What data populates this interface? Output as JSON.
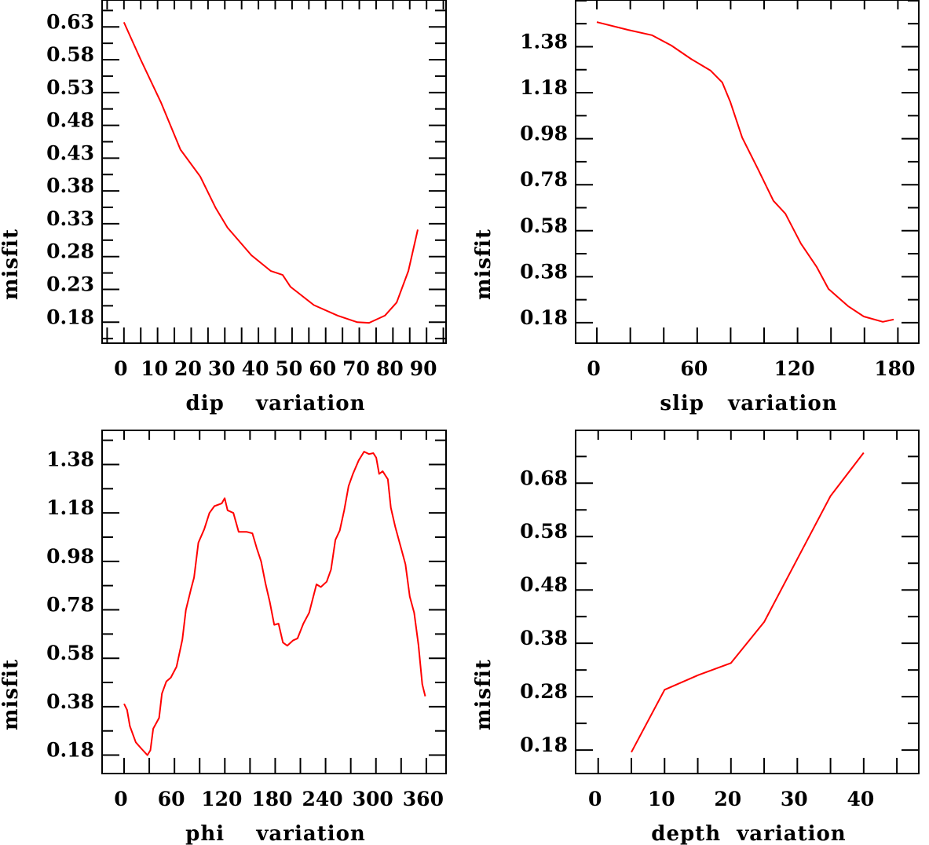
{
  "chart_data": [
    {
      "type": "line",
      "xlabel": "dip    variation",
      "ylabel": "misfit",
      "color": "#ff0000",
      "xlim": [
        -6.5,
        95.8
      ],
      "ylim": [
        0.148,
        0.671
      ],
      "xticks": [
        0,
        10,
        20,
        30,
        40,
        50,
        60,
        70,
        80,
        90
      ],
      "xtick_labels": [
        "0",
        "10",
        "20",
        "30",
        "40",
        "50",
        "60",
        "70",
        "80",
        "90"
      ],
      "xminor_step": 5,
      "yticks": [
        0.18,
        0.23,
        0.28,
        0.33,
        0.38,
        0.43,
        0.48,
        0.53,
        0.58,
        0.63
      ],
      "ytick_labels": [
        "0.18",
        "0.23",
        "0.28",
        "0.33",
        "0.38",
        "0.43",
        "0.48",
        "0.53",
        "0.58",
        "0.63"
      ],
      "yminor_step": 0.025,
      "x": [
        0,
        5,
        11,
        16.8,
        22.7,
        27.3,
        30.8,
        37.9,
        43.7,
        47.2,
        49.5,
        56.5,
        63.6,
        69.4,
        72.9,
        77.6,
        81.1,
        84.6,
        87.4
      ],
      "y": [
        0.637,
        0.58,
        0.515,
        0.443,
        0.402,
        0.354,
        0.324,
        0.282,
        0.258,
        0.252,
        0.234,
        0.206,
        0.19,
        0.18,
        0.179,
        0.19,
        0.21,
        0.258,
        0.321
      ]
    },
    {
      "type": "line",
      "xlabel": "slip   variation",
      "ylabel": "misfit",
      "color": "#ff0000",
      "xlim": [
        -12.7,
        192.5
      ],
      "ylim": [
        0.091,
        1.583
      ],
      "xticks": [
        0,
        60,
        120,
        180
      ],
      "xtick_labels": [
        "0",
        "60",
        "120",
        "180"
      ],
      "xminor_step": 20,
      "yticks": [
        0.18,
        0.38,
        0.58,
        0.78,
        0.98,
        1.18,
        1.38
      ],
      "ytick_labels": [
        "0.18",
        "0.38",
        "0.58",
        "0.78",
        "0.98",
        "1.18",
        "1.38"
      ],
      "yminor_step": 0.1,
      "x": [
        0,
        18.8,
        32.9,
        44.6,
        56.3,
        68,
        75,
        79.8,
        86.9,
        96.2,
        105.6,
        112.7,
        122,
        131.5,
        138.5,
        150.2,
        159.6,
        171,
        177.5
      ],
      "y": [
        1.487,
        1.453,
        1.43,
        1.385,
        1.327,
        1.276,
        1.224,
        1.14,
        0.985,
        0.85,
        0.71,
        0.654,
        0.524,
        0.422,
        0.327,
        0.252,
        0.207,
        0.184,
        0.194
      ]
    },
    {
      "type": "line",
      "xlabel": "phi    variation",
      "ylabel": "misfit",
      "color": "#ff0000",
      "xlim": [
        -26.2,
        383.5
      ],
      "ylim": [
        0.104,
        1.521
      ],
      "xticks": [
        0,
        60,
        120,
        180,
        240,
        300,
        360
      ],
      "xtick_labels": [
        "0",
        "60",
        "120",
        "180",
        "240",
        "300",
        "360"
      ],
      "xminor_step": 30,
      "yticks": [
        0.18,
        0.38,
        0.58,
        0.78,
        0.98,
        1.18,
        1.38
      ],
      "ytick_labels": [
        "0.18",
        "0.38",
        "0.58",
        "0.78",
        "0.98",
        "1.18",
        "1.38"
      ],
      "yminor_step": 0.1,
      "x": [
        0,
        3.5,
        6.9,
        13.9,
        20.8,
        27.8,
        31.3,
        34.7,
        41.7,
        45.1,
        50.3,
        55.6,
        62.5,
        69.4,
        73.6,
        79.9,
        83.3,
        88.5,
        95.5,
        101.7,
        107.6,
        116.3,
        119.8,
        123.3,
        130.2,
        136.5,
        145.8,
        152.8,
        158,
        163.2,
        168.4,
        173.6,
        178.8,
        184,
        189.2,
        194.4,
        201.4,
        206.6,
        213.5,
        220.5,
        229.2,
        234.4,
        241.3,
        246.5,
        251.7,
        256.9,
        262.2,
        267.4,
        272.6,
        279.5,
        285.8,
        291.7,
        296.9,
        300.3,
        303.8,
        308,
        314.2,
        317.7,
        322.9,
        329.9,
        335.1,
        340.3,
        345.5,
        350.7,
        355.2,
        358.7
      ],
      "y": [
        0.392,
        0.367,
        0.3,
        0.233,
        0.206,
        0.18,
        0.2,
        0.289,
        0.334,
        0.434,
        0.484,
        0.5,
        0.545,
        0.657,
        0.779,
        0.868,
        0.913,
        1.057,
        1.113,
        1.18,
        1.208,
        1.219,
        1.241,
        1.191,
        1.18,
        1.102,
        1.102,
        1.096,
        1.035,
        0.98,
        0.89,
        0.812,
        0.718,
        0.723,
        0.645,
        0.632,
        0.654,
        0.662,
        0.723,
        0.768,
        0.885,
        0.874,
        0.896,
        0.946,
        1.069,
        1.108,
        1.191,
        1.291,
        1.341,
        1.397,
        1.433,
        1.423,
        1.427,
        1.408,
        1.341,
        1.352,
        1.319,
        1.202,
        1.124,
        1.035,
        0.968,
        0.835,
        0.768,
        0.634,
        0.473,
        0.423
      ]
    },
    {
      "type": "line",
      "xlabel": "depth  variation",
      "ylabel": "misfit",
      "color": "#ff0000",
      "xlim": [
        -3.4,
        48.3
      ],
      "ylim": [
        0.136,
        0.779
      ],
      "xticks": [
        0,
        10,
        20,
        30,
        40
      ],
      "xtick_labels": [
        "0",
        "10",
        "20",
        "30",
        "40"
      ],
      "xminor_step": 5,
      "yticks": [
        0.18,
        0.28,
        0.38,
        0.48,
        0.58,
        0.68
      ],
      "ytick_labels": [
        "0.18",
        "0.28",
        "0.38",
        "0.48",
        "0.58",
        "0.68"
      ],
      "yminor_step": 0.05,
      "x": [
        5,
        10,
        15,
        20,
        25,
        30,
        35,
        40
      ],
      "y": [
        0.176,
        0.293,
        0.32,
        0.343,
        0.42,
        0.538,
        0.656,
        0.737
      ]
    }
  ]
}
